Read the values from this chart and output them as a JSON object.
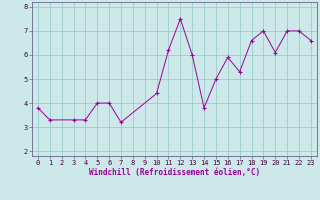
{
  "xlabel": "Windchill (Refroidissement éolien,°C)",
  "xlim": [
    -0.5,
    23.5
  ],
  "ylim": [
    1.8,
    8.2
  ],
  "yticks": [
    2,
    3,
    4,
    5,
    6,
    7,
    8
  ],
  "xticks": [
    0,
    1,
    2,
    3,
    4,
    5,
    6,
    7,
    8,
    9,
    10,
    11,
    12,
    13,
    14,
    15,
    16,
    17,
    18,
    19,
    20,
    21,
    22,
    23
  ],
  "xticklabels": [
    "0",
    "1",
    "2",
    "3",
    "4",
    "5",
    "6",
    "7",
    "8",
    "9",
    "10",
    "11",
    "12",
    "13",
    "14",
    "15",
    "16",
    "17",
    "18",
    "19",
    "20",
    "21",
    "22",
    "23"
  ],
  "bg_color": "#cce8e8",
  "line_color": "#990099",
  "grid_color": "#99cccc",
  "axis_color": "#666688",
  "tick_color": "#440044",
  "series_x": [
    0,
    1,
    3,
    4,
    5,
    6,
    7,
    10,
    11,
    12,
    13,
    14,
    15,
    16,
    17,
    18,
    19,
    20,
    21,
    22,
    23
  ],
  "series_y": [
    3.8,
    3.3,
    3.3,
    3.3,
    4.0,
    4.0,
    3.2,
    4.4,
    6.2,
    7.5,
    6.0,
    3.8,
    5.0,
    5.9,
    5.3,
    6.6,
    7.0,
    6.1,
    7.0,
    7.0,
    6.6
  ],
  "tick_fontsize": 5.0,
  "xlabel_fontsize": 5.5,
  "linewidth": 0.7,
  "markersize": 3.0
}
